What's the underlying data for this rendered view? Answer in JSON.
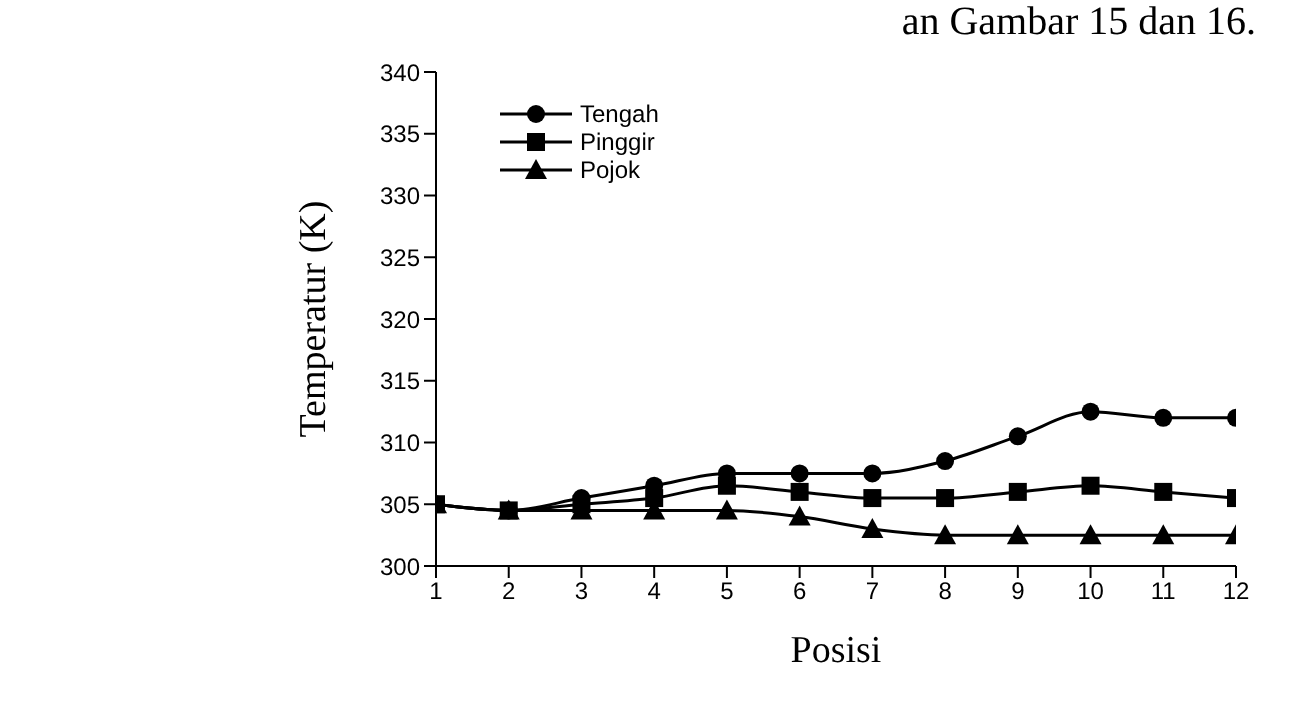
{
  "chart_data": {
    "type": "line",
    "xlabel": "Posisi",
    "ylabel": "Temperatur (K)",
    "annotations": [
      "an Gambar 15 dan 16."
    ],
    "x": [
      1,
      2,
      3,
      4,
      5,
      6,
      7,
      8,
      9,
      10,
      11,
      12
    ],
    "xlim": [
      1,
      12
    ],
    "xticks": [
      1,
      2,
      3,
      4,
      5,
      6,
      7,
      8,
      9,
      10,
      11,
      12
    ],
    "ylim": [
      300,
      340
    ],
    "yticks": [
      300,
      305,
      310,
      315,
      320,
      325,
      330,
      335,
      340
    ],
    "grid": false,
    "legend": "top left",
    "line_style": "solid",
    "series": [
      {
        "name": "Tengah",
        "color": "#000000",
        "marker": "circle",
        "values": [
          305,
          304.5,
          305.5,
          306.5,
          307.5,
          307.5,
          307.5,
          308.5,
          310.5,
          312.5,
          312,
          312
        ]
      },
      {
        "name": "Pinggir",
        "color": "#000000",
        "marker": "square",
        "values": [
          305,
          304.5,
          305,
          305.5,
          306.5,
          306,
          305.5,
          305.5,
          306,
          306.5,
          306,
          305.5
        ]
      },
      {
        "name": "Pojok",
        "color": "#000000",
        "marker": "triangle",
        "values": [
          305,
          304.5,
          304.5,
          304.5,
          304.5,
          304,
          303,
          302.5,
          302.5,
          302.5,
          302.5,
          302.5
        ]
      }
    ]
  }
}
